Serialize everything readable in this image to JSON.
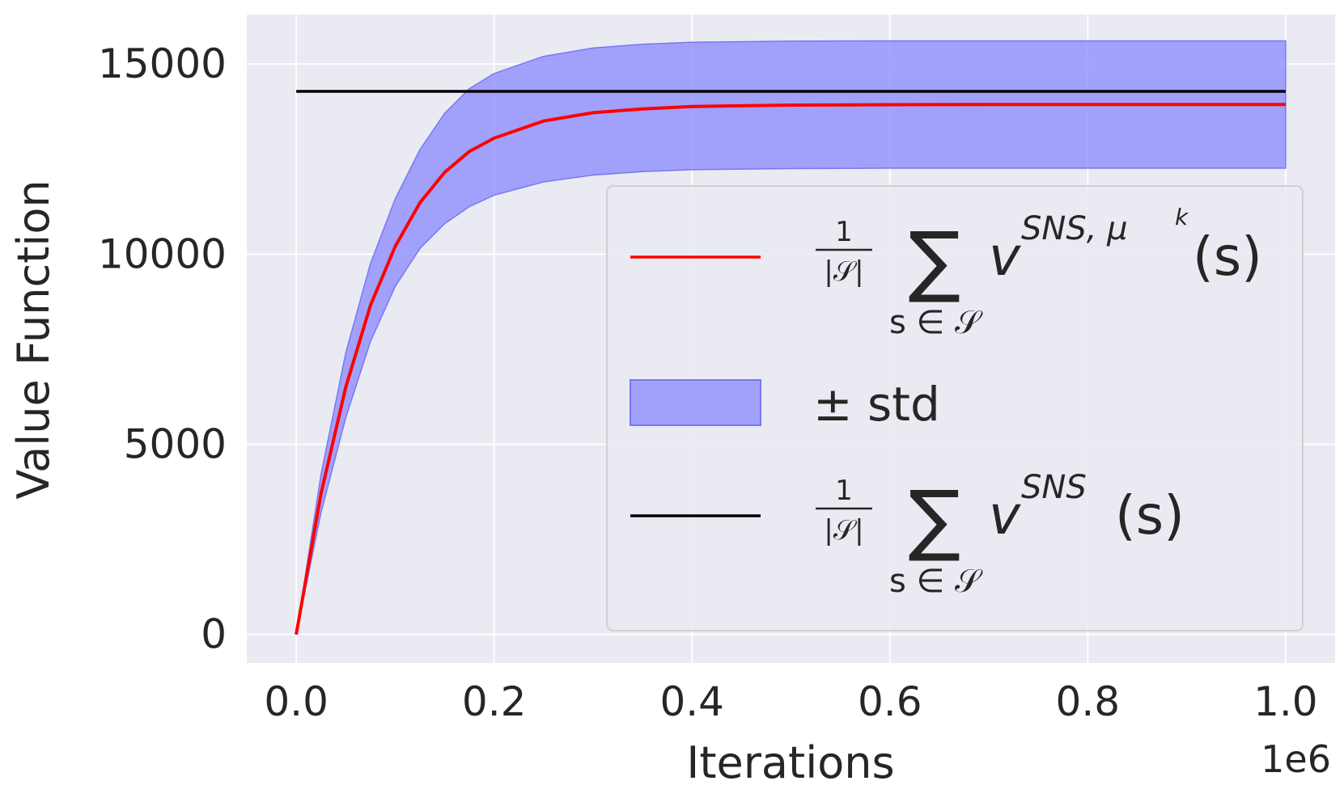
{
  "chart_data": {
    "type": "line",
    "xlabel": "Iterations",
    "ylabel": "Value Function",
    "x_offset_label": "1e6",
    "xlim": [
      -0.05,
      1.05
    ],
    "ylim": [
      -750,
      16300
    ],
    "xticks": [
      0.0,
      0.2,
      0.4,
      0.6,
      0.8,
      1.0
    ],
    "xtick_labels": [
      "0.0",
      "0.2",
      "0.4",
      "0.6",
      "0.8",
      "1.0"
    ],
    "yticks": [
      0,
      5000,
      10000,
      15000
    ],
    "ytick_labels": [
      "0",
      "5000",
      "10000",
      "15000"
    ],
    "grid": true,
    "legend_position": "center-right",
    "colors": {
      "mean": "#ff0000",
      "band_fill": "#8c8cff",
      "band_edge": "#7878f0",
      "reference": "#000000",
      "axes_bg": "#eaeaf2",
      "grid": "#ffffff"
    },
    "series": [
      {
        "name": "mean",
        "legend": {
          "frac_num": "1",
          "frac_den": "|𝒮|",
          "sum": "∑",
          "sub": "s ∈ 𝒮",
          "base": "v",
          "sup": "SNS, μ",
          "sup2": "k",
          "arg": "(s)"
        },
        "x": [
          0.0,
          0.025,
          0.05,
          0.075,
          0.1,
          0.125,
          0.15,
          0.175,
          0.2,
          0.25,
          0.3,
          0.35,
          0.4,
          0.5,
          0.6,
          0.7,
          0.8,
          0.9,
          1.0
        ],
        "values": [
          0,
          3700,
          6500,
          8650,
          10200,
          11350,
          12150,
          12700,
          13050,
          13500,
          13720,
          13820,
          13880,
          13920,
          13930,
          13935,
          13935,
          13935,
          13935
        ]
      },
      {
        "name": "± std",
        "legend": {
          "label": "± std"
        },
        "x": [
          0.0,
          0.025,
          0.05,
          0.075,
          0.1,
          0.125,
          0.15,
          0.175,
          0.2,
          0.25,
          0.3,
          0.35,
          0.4,
          0.5,
          0.6,
          0.7,
          0.8,
          0.9,
          1.0
        ],
        "lower": [
          0,
          3200,
          5700,
          7700,
          9150,
          10150,
          10800,
          11250,
          11550,
          11900,
          12080,
          12170,
          12220,
          12250,
          12260,
          12260,
          12260,
          12260,
          12260
        ],
        "upper": [
          0,
          4200,
          7400,
          9750,
          11450,
          12750,
          13700,
          14350,
          14750,
          15200,
          15420,
          15520,
          15570,
          15600,
          15610,
          15610,
          15610,
          15610,
          15610
        ]
      },
      {
        "name": "reference",
        "legend": {
          "frac_num": "1",
          "frac_den": "|𝒮|",
          "sum": "∑",
          "sub": "s ∈ 𝒮",
          "base": "v",
          "sup": "SNS",
          "arg": "(s)"
        },
        "x": [
          0.0,
          1.0
        ],
        "values": [
          14280,
          14280
        ]
      }
    ]
  }
}
